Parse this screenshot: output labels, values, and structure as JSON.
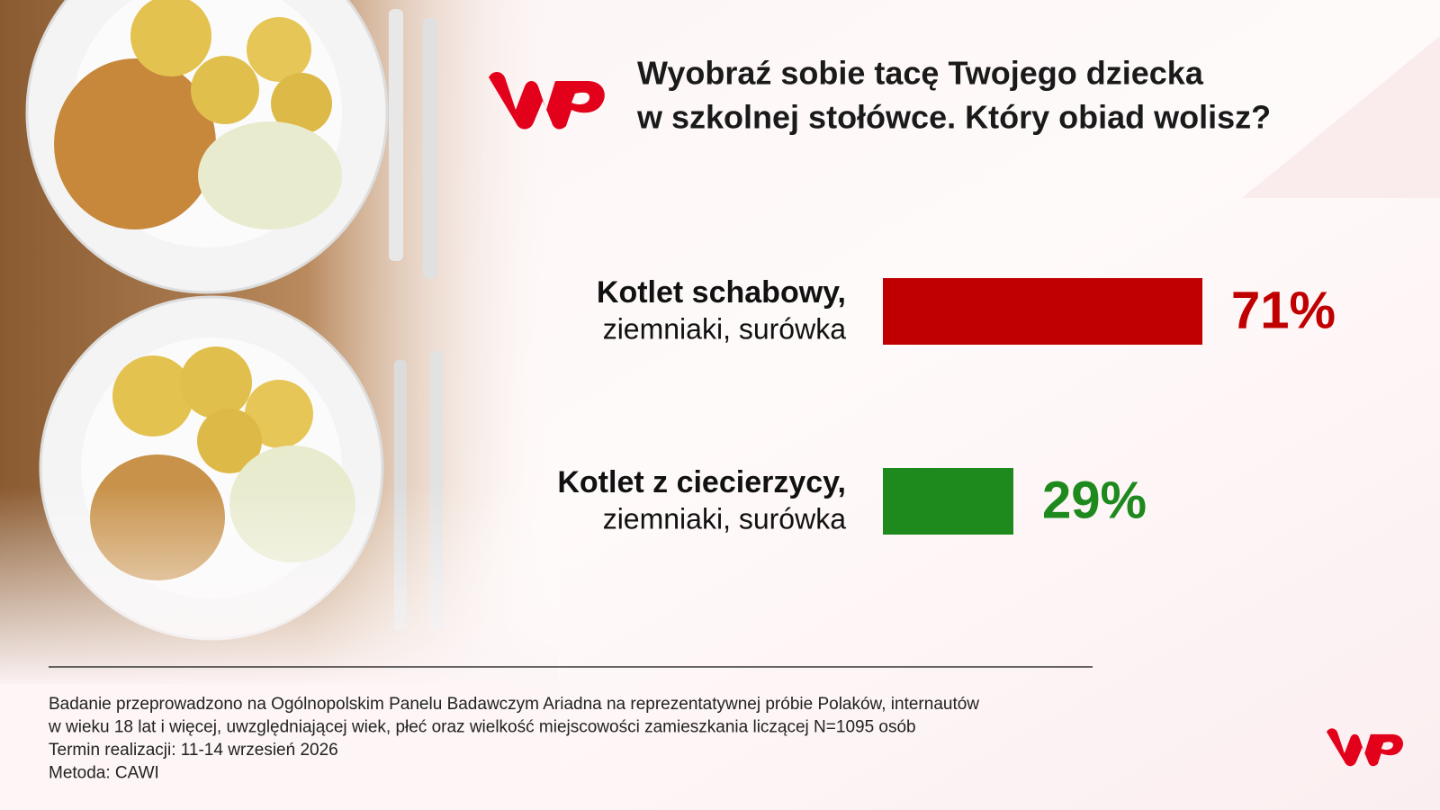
{
  "chart_data": {
    "type": "bar",
    "orientation": "horizontal",
    "title": [
      "Wyobraź sobie tacę Twojego dziecka",
      "w szkolnej stołówce. Który obiad wolisz?"
    ],
    "categories": [
      "Kotlet schabowy,",
      "Kotlet z ciecierzycy,"
    ],
    "category_details": [
      "ziemniaki, surówka",
      "ziemniaki, surówka"
    ],
    "values": [
      71,
      29
    ],
    "value_labels": [
      "71%",
      "29%"
    ],
    "colors": [
      "#c00000",
      "#1e8a1e"
    ],
    "notes": [
      "Badanie przeprowadzono na Ogólnopolskim Panelu Badawczym Ariadna na reprezentatywnej próbie Polaków, internautów",
      "w wieku 18 lat i więcej, uwzględniającej wiek, płeć oraz wielkość miejscowości zamieszkania liczącej N=1095 osób",
      "Termin realizacji: 11-14 wrzesień 2026",
      "Metoda: CAWI"
    ]
  }
}
